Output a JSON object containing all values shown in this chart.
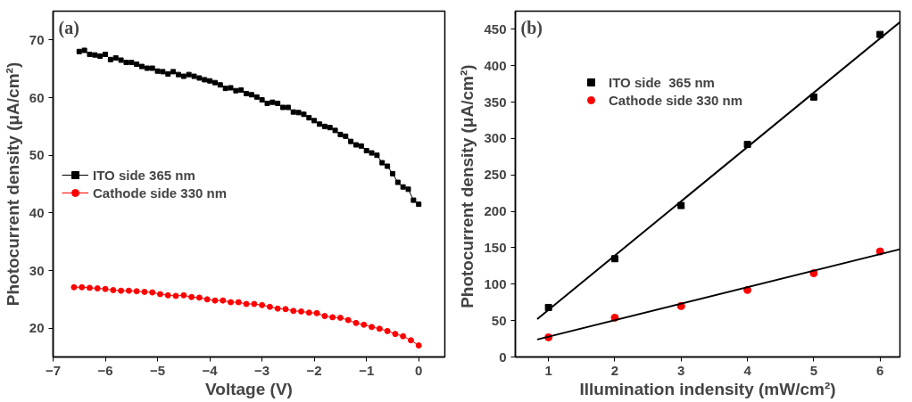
{
  "chart_data": [
    {
      "type": "line",
      "annotations": [
        "(a)"
      ],
      "xlabel": "Voltage (V)",
      "ylabel": "Photocurrent density (μA/cm²)",
      "xlim": [
        -7,
        0.5
      ],
      "ylim": [
        15,
        75
      ],
      "xticks": [
        -7,
        -6,
        -5,
        -4,
        -3,
        -2,
        -1,
        0
      ],
      "yticks": [
        20,
        30,
        40,
        50,
        60,
        70
      ],
      "grid": false,
      "legend": "left",
      "line_style": "solid",
      "series": [
        {
          "name": "ITO side 365 nm",
          "color": "#000000",
          "marker": "square",
          "x": [
            -6.5,
            -6.4,
            -6.3,
            -6.2,
            -6.1,
            -6.0,
            -5.9,
            -5.8,
            -5.7,
            -5.6,
            -5.5,
            -5.4,
            -5.3,
            -5.2,
            -5.1,
            -5.0,
            -4.9,
            -4.8,
            -4.7,
            -4.6,
            -4.5,
            -4.4,
            -4.3,
            -4.2,
            -4.1,
            -4.0,
            -3.9,
            -3.8,
            -3.7,
            -3.6,
            -3.5,
            -3.4,
            -3.3,
            -3.2,
            -3.1,
            -3.0,
            -2.9,
            -2.8,
            -2.7,
            -2.6,
            -2.5,
            -2.4,
            -2.3,
            -2.2,
            -2.1,
            -2.0,
            -1.9,
            -1.8,
            -1.7,
            -1.6,
            -1.5,
            -1.4,
            -1.3,
            -1.2,
            -1.1,
            -1.0,
            -0.9,
            -0.8,
            -0.7,
            -0.6,
            -0.5,
            -0.4,
            -0.3,
            -0.2,
            -0.1,
            0
          ],
          "values": [
            68.0,
            68.2,
            67.5,
            67.4,
            67.2,
            67.5,
            66.6,
            66.9,
            66.5,
            66.1,
            66.1,
            65.8,
            65.4,
            65.1,
            65.1,
            64.6,
            64.5,
            64.1,
            64.5,
            64.0,
            63.7,
            64.0,
            63.7,
            63.4,
            63.1,
            62.9,
            62.6,
            62.2,
            61.6,
            61.7,
            61.2,
            61.3,
            60.7,
            60.5,
            60.1,
            59.6,
            59.0,
            59.2,
            59.0,
            58.3,
            58.3,
            57.5,
            57.4,
            57.1,
            56.5,
            56.0,
            55.4,
            55.0,
            54.8,
            54.3,
            53.6,
            53.3,
            52.4,
            51.8,
            51.6,
            50.8,
            50.4,
            50.0,
            48.7,
            48.1,
            46.8,
            45.3,
            44.5,
            44.1,
            42.2,
            41.5
          ]
        },
        {
          "name": "Cathode side 330 nm",
          "color": "#ff0000",
          "marker": "circle",
          "x": [
            -6.6,
            -6.45,
            -6.3,
            -6.15,
            -6.0,
            -5.85,
            -5.7,
            -5.55,
            -5.4,
            -5.25,
            -5.1,
            -4.95,
            -4.8,
            -4.65,
            -4.5,
            -4.35,
            -4.2,
            -4.05,
            -3.9,
            -3.75,
            -3.6,
            -3.45,
            -3.3,
            -3.15,
            -3.0,
            -2.85,
            -2.7,
            -2.55,
            -2.4,
            -2.25,
            -2.1,
            -1.95,
            -1.8,
            -1.65,
            -1.5,
            -1.35,
            -1.2,
            -1.05,
            -0.9,
            -0.75,
            -0.6,
            -0.45,
            -0.3,
            -0.15,
            0
          ],
          "values": [
            27.1,
            27.1,
            27.0,
            26.9,
            26.8,
            26.6,
            26.5,
            26.5,
            26.4,
            26.3,
            26.2,
            25.9,
            25.7,
            25.6,
            25.7,
            25.4,
            25.3,
            25.0,
            24.8,
            24.8,
            24.5,
            24.5,
            24.2,
            24.2,
            24.0,
            23.7,
            23.4,
            23.3,
            23.0,
            22.9,
            22.7,
            22.6,
            22.1,
            21.9,
            21.8,
            21.4,
            20.9,
            20.6,
            20.2,
            19.9,
            19.5,
            19.0,
            18.6,
            17.9,
            17.0
          ]
        }
      ]
    },
    {
      "type": "scatter",
      "annotations": [
        "(b)"
      ],
      "xlabel": "Illumination indensity (mW/cm²)",
      "ylabel": "Photocurrent density  (μA/cm²)",
      "xlim": [
        0.5,
        6.3
      ],
      "ylim": [
        0,
        475
      ],
      "xticks": [
        1,
        2,
        3,
        4,
        5,
        6
      ],
      "yticks": [
        0,
        50,
        100,
        150,
        200,
        250,
        300,
        350,
        400,
        450
      ],
      "grid": false,
      "legend": "top left",
      "series": [
        {
          "name": "ITO side  365 nm",
          "color": "#000000",
          "marker": "square",
          "x": [
            1,
            2,
            3,
            4,
            5,
            6
          ],
          "values": [
            68,
            135,
            208,
            292,
            357,
            443
          ]
        },
        {
          "name": "Cathode side 330 nm",
          "color": "#ff0000",
          "marker": "circle",
          "x": [
            1,
            2,
            3,
            4,
            5,
            6
          ],
          "values": [
            27,
            54,
            70,
            92,
            115,
            145
          ]
        },
        {
          "type": "line",
          "color": "#000000",
          "marker": "none",
          "x": [
            0.83,
            6.3
          ],
          "values": [
            52,
            460
          ]
        },
        {
          "type": "line",
          "color": "#000000",
          "marker": "none",
          "x": [
            0.83,
            6.3
          ],
          "values": [
            24,
            148
          ]
        }
      ]
    }
  ]
}
